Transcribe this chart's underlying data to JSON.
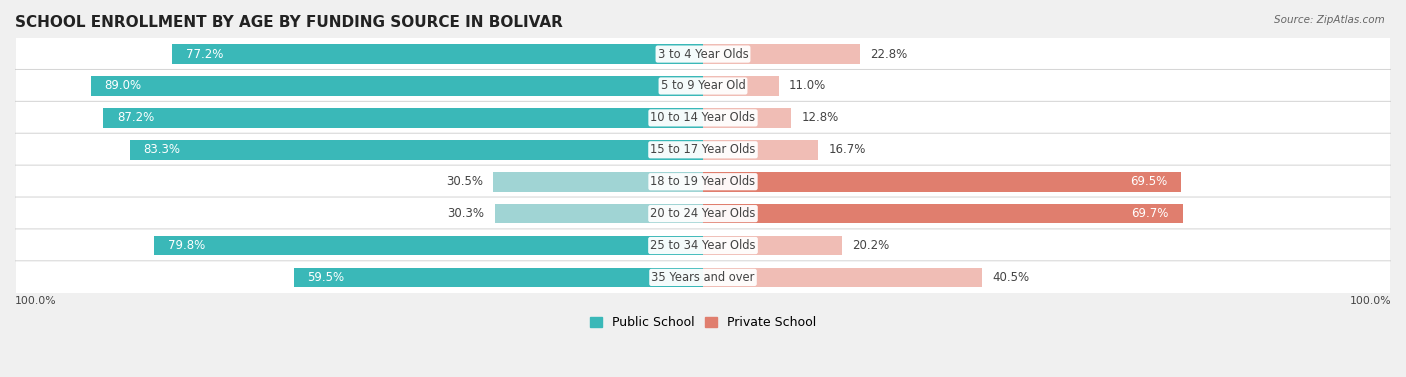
{
  "title": "SCHOOL ENROLLMENT BY AGE BY FUNDING SOURCE IN BOLIVAR",
  "source": "Source: ZipAtlas.com",
  "categories": [
    "3 to 4 Year Olds",
    "5 to 9 Year Old",
    "10 to 14 Year Olds",
    "15 to 17 Year Olds",
    "18 to 19 Year Olds",
    "20 to 24 Year Olds",
    "25 to 34 Year Olds",
    "35 Years and over"
  ],
  "public_values": [
    77.2,
    89.0,
    87.2,
    83.3,
    30.5,
    30.3,
    79.8,
    59.5
  ],
  "private_values": [
    22.8,
    11.0,
    12.8,
    16.7,
    69.5,
    69.7,
    20.2,
    40.5
  ],
  "public_color_strong": "#3ab8b8",
  "public_color_light": "#a0d4d4",
  "private_color_strong": "#e07e6e",
  "private_color_light": "#f0bdb5",
  "bg_color": "#f0f0f0",
  "row_bg": "#ffffff",
  "label_color": "#444444",
  "bar_height": 0.62,
  "title_fontsize": 11,
  "annotation_fontsize": 8.5,
  "cat_fontsize": 8.3
}
